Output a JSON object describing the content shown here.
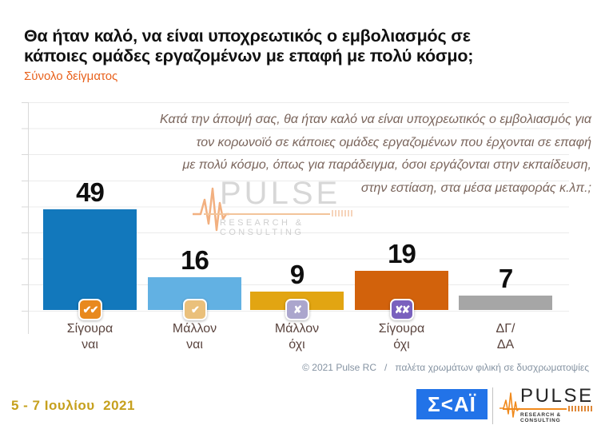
{
  "title": "Θα ήταν καλό, να είναι υποχρεωτικός ο εμβολιασμός σε\nκάποιες ομάδες εργαζομένων με επαφή με πολύ κόσμο;",
  "subtitle": "Σύνολο δείγματος",
  "annotation": "Κατά την άποψή σας, θα ήταν καλό να είναι υποχρεωτικός ο εμβολιασμός για\nτον κορωνοϊό σε κάποιες ομάδες εργαζομένων που έρχονται σε επαφή\nμε πολύ κόσμο, όπως για παράδειγμα, όσοι εργάζονται στην εκπαίδευση,\nστην εστίαση, στα μέσα μεταφοράς κ.λπ.;",
  "chart_data": {
    "type": "bar",
    "categories": [
      "Σίγουρα ναι",
      "Μάλλον ναι",
      "Μάλλον όχι",
      "Σίγουρα όχι",
      "ΔΓ/ΔΑ"
    ],
    "values": [
      49,
      16,
      9,
      19,
      7
    ],
    "bar_colors": [
      "#1278BC",
      "#62B1E3",
      "#E2A512",
      "#D2620C",
      "#A6A6A6"
    ],
    "label_lines": [
      [
        "Σίγουρα",
        "ναι"
      ],
      [
        "Μάλλον",
        "ναι"
      ],
      [
        "Μάλλον",
        "όχι"
      ],
      [
        "Σίγουρα",
        "όχι"
      ],
      [
        "ΔΓ/",
        "ΔΑ"
      ]
    ],
    "markers": [
      {
        "name": "double-check-icon",
        "glyph": "✔✔",
        "bg": "#E8891E"
      },
      {
        "name": "check-icon",
        "glyph": "✔",
        "bg": "#EAC07B"
      },
      {
        "name": "x-icon",
        "glyph": "✘",
        "bg": "#ABA6CD"
      },
      {
        "name": "double-x-icon",
        "glyph": "✘✘",
        "bg": "#7A61BE"
      },
      null
    ],
    "ylim": [
      0,
      100
    ],
    "grid": true,
    "legend": "none",
    "xlabel": "",
    "ylabel": ""
  },
  "watermark": {
    "name": "PULSE",
    "tagline": "RESEARCH & CONSULTING"
  },
  "footnote": "© 2021 Pulse RC   /   παλέτα χρωμάτων φιλική σε δυσχρωματοψίες",
  "footer": {
    "date": "5 - 7 Ιουλίου  2021",
    "skai": "Σ<ΑΪ",
    "pulse_name": "PULSE",
    "pulse_tagline": "RESEARCH & CONSULTING"
  },
  "colors": {
    "accent_orange": "#E8611C",
    "date_gold": "#C6A01D",
    "skai_blue": "#2273E8",
    "annotation_brown": "#7A655C",
    "label_brown": "#5A443E"
  }
}
